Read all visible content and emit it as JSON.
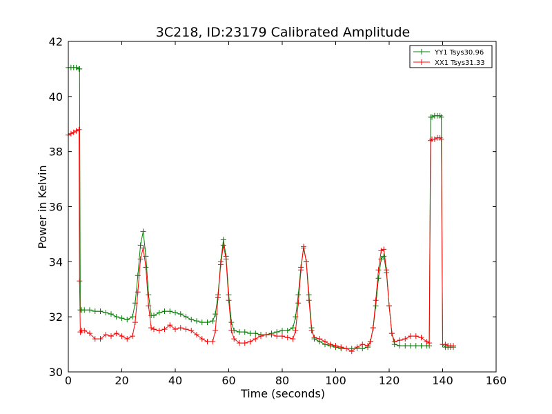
{
  "chart_data": {
    "type": "line",
    "title": "3C218, ID:23179 Calibrated Amplitude",
    "xlabel": "Time (seconds)",
    "ylabel": "Power in Kelvin",
    "xlim": [
      0,
      160
    ],
    "ylim": [
      30,
      42
    ],
    "xticks": [
      "0",
      "20",
      "40",
      "60",
      "80",
      "100",
      "120",
      "140",
      "160"
    ],
    "yticks": [
      "30",
      "32",
      "34",
      "36",
      "38",
      "40",
      "42"
    ],
    "grid": false,
    "legend_position": "top-right",
    "marker": "+",
    "series": [
      {
        "name": "YY1 Tsys30.96",
        "color": "#008000",
        "x": [
          0,
          1,
          2,
          3,
          4,
          4.2,
          4.5,
          5,
          6,
          8,
          10,
          12,
          14,
          16,
          18,
          20,
          22,
          24,
          25,
          26,
          27,
          28,
          29,
          30,
          31,
          32,
          34,
          36,
          38,
          40,
          42,
          44,
          46,
          48,
          50,
          52,
          54,
          55,
          56,
          57,
          58,
          59,
          60,
          61,
          62,
          64,
          66,
          68,
          70,
          72,
          74,
          76,
          78,
          80,
          82,
          84,
          85,
          86,
          87,
          88,
          89,
          90,
          91,
          92,
          94,
          96,
          98,
          100,
          102,
          104,
          106,
          108,
          110,
          112,
          113,
          114,
          115,
          116,
          117,
          118,
          119,
          120,
          121,
          122,
          124,
          126,
          128,
          130,
          132,
          134,
          135,
          135.5,
          136,
          137,
          138,
          139,
          139.5,
          140,
          141,
          142,
          143,
          144
        ],
        "y": [
          41.05,
          41.05,
          41.05,
          41.05,
          41.0,
          41.0,
          32.25,
          32.25,
          32.25,
          32.25,
          32.2,
          32.2,
          32.15,
          32.1,
          32.0,
          31.95,
          31.9,
          32.0,
          32.5,
          33.5,
          34.6,
          35.1,
          34.2,
          32.8,
          32.05,
          32.05,
          32.15,
          32.2,
          32.2,
          32.15,
          32.1,
          32.0,
          31.9,
          31.85,
          31.8,
          31.8,
          31.85,
          32.1,
          32.8,
          34.0,
          34.8,
          34.2,
          32.8,
          31.8,
          31.5,
          31.45,
          31.45,
          31.4,
          31.4,
          31.35,
          31.35,
          31.4,
          31.45,
          31.5,
          31.5,
          31.6,
          32.0,
          32.8,
          33.8,
          34.5,
          34.0,
          32.8,
          31.6,
          31.2,
          31.1,
          31.0,
          30.95,
          30.9,
          30.85,
          30.85,
          30.85,
          30.85,
          30.85,
          30.9,
          31.1,
          31.6,
          32.4,
          33.4,
          34.1,
          34.2,
          33.6,
          32.4,
          31.4,
          31.0,
          30.95,
          30.95,
          30.95,
          30.95,
          30.95,
          30.95,
          30.95,
          39.25,
          39.25,
          39.3,
          39.3,
          39.3,
          39.25,
          31.0,
          30.9,
          30.9,
          30.9,
          30.9
        ]
      },
      {
        "name": "XX1 Tsys31.33",
        "color": "#ff0000",
        "x": [
          0,
          1,
          2,
          3,
          4,
          4.2,
          4.5,
          5,
          6,
          8,
          10,
          12,
          14,
          16,
          18,
          20,
          22,
          24,
          25,
          26,
          27,
          28,
          29,
          30,
          31,
          32,
          34,
          36,
          38,
          40,
          42,
          44,
          46,
          48,
          50,
          52,
          54,
          55,
          56,
          57,
          58,
          59,
          60,
          61,
          62,
          64,
          66,
          68,
          70,
          72,
          74,
          76,
          78,
          80,
          82,
          84,
          85,
          86,
          87,
          88,
          89,
          90,
          91,
          92,
          94,
          96,
          98,
          100,
          102,
          104,
          106,
          108,
          110,
          112,
          113,
          114,
          115,
          116,
          117,
          118,
          119,
          120,
          121,
          122,
          124,
          126,
          128,
          130,
          132,
          134,
          135,
          135.5,
          136,
          137,
          138,
          139,
          139.5,
          140,
          141,
          142,
          143,
          144
        ],
        "y": [
          38.6,
          38.65,
          38.7,
          38.75,
          38.8,
          33.3,
          31.45,
          31.5,
          31.5,
          31.4,
          31.2,
          31.2,
          31.35,
          31.3,
          31.4,
          31.3,
          31.2,
          31.3,
          31.8,
          32.9,
          34.1,
          34.5,
          33.8,
          32.4,
          31.6,
          31.55,
          31.5,
          31.55,
          31.7,
          31.55,
          31.6,
          31.55,
          31.5,
          31.35,
          31.2,
          31.1,
          31.1,
          31.5,
          32.7,
          33.9,
          34.6,
          34.1,
          32.6,
          31.5,
          31.2,
          31.05,
          31.05,
          31.1,
          31.2,
          31.3,
          31.35,
          31.35,
          31.3,
          31.3,
          31.25,
          31.2,
          31.5,
          32.5,
          33.7,
          34.55,
          34.0,
          32.6,
          31.5,
          31.25,
          31.2,
          31.1,
          31.0,
          30.95,
          30.9,
          30.85,
          30.75,
          30.9,
          31.0,
          30.95,
          31.1,
          31.6,
          32.6,
          33.7,
          34.4,
          34.45,
          33.7,
          32.4,
          31.4,
          31.1,
          31.15,
          31.2,
          31.3,
          31.3,
          31.25,
          31.1,
          31.05,
          38.4,
          38.45,
          38.45,
          38.5,
          38.5,
          38.45,
          31.0,
          31.0,
          30.95,
          30.95,
          30.95
        ]
      }
    ]
  }
}
